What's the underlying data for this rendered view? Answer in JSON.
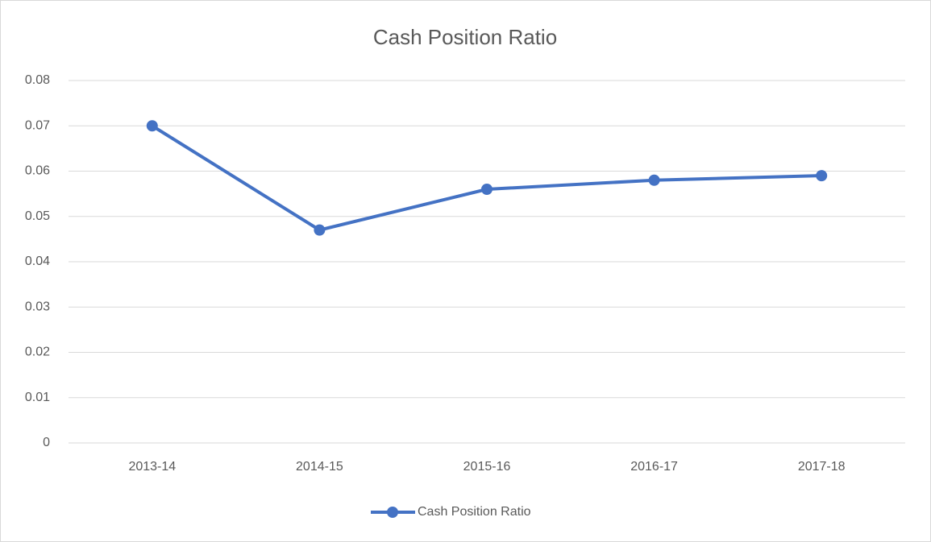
{
  "chart_data": {
    "type": "line",
    "title": "Cash Position Ratio",
    "categories": [
      "2013-14",
      "2014-15",
      "2015-16",
      "2016-17",
      "2017-18"
    ],
    "series": [
      {
        "name": "Cash Position Ratio",
        "color": "#4472c4",
        "values": [
          0.07,
          0.047,
          0.056,
          0.058,
          0.059
        ]
      }
    ],
    "ylim": [
      0,
      0.08
    ],
    "yticks": [
      0,
      0.01,
      0.02,
      0.03,
      0.04,
      0.05,
      0.06,
      0.07,
      0.08
    ],
    "grid": true,
    "legend": "bottom"
  }
}
